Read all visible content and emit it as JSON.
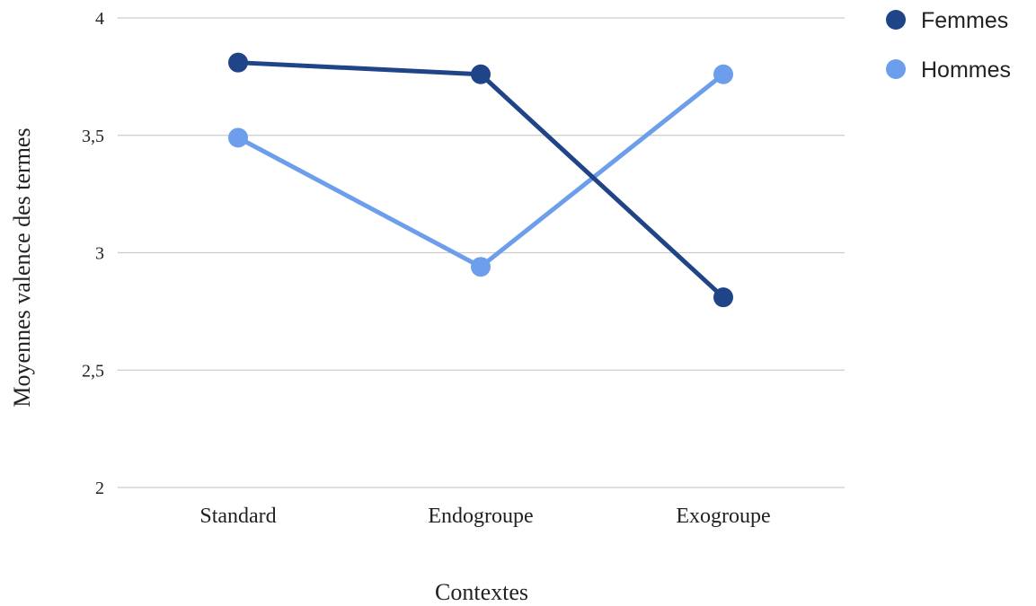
{
  "chart_data": {
    "type": "line",
    "title": "",
    "xlabel": "Contextes",
    "ylabel": "Moyennes valence des termes",
    "categories": [
      "Standard",
      "Endogroupe",
      "Exogroupe"
    ],
    "ylim": [
      2,
      4
    ],
    "yticks": [
      2,
      2.5,
      3,
      3.5,
      4
    ],
    "ytick_labels": [
      "2",
      "2,5",
      "3",
      "3,5",
      "4"
    ],
    "grid": true,
    "legend_position": "top-right",
    "series": [
      {
        "name": "Femmes",
        "color": "#1f4487",
        "values": [
          3.81,
          3.76,
          2.81
        ]
      },
      {
        "name": "Hommes",
        "color": "#6d9eeb",
        "values": [
          3.49,
          2.94,
          3.76
        ]
      }
    ]
  }
}
